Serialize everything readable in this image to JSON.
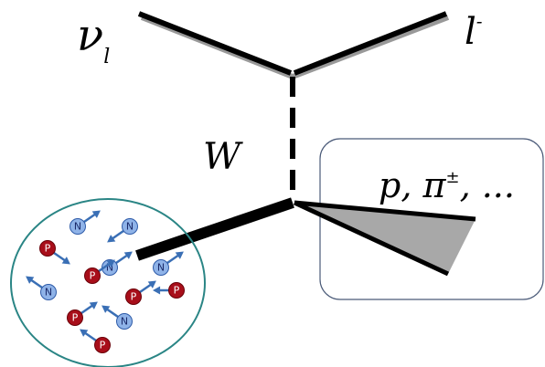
{
  "labels": {
    "neutrino": "ν",
    "neutrino_sub": "l",
    "lepton": "l",
    "lepton_sup": "-",
    "boson": "W",
    "hadrons": "p, π",
    "hadrons_sup": "±",
    "hadrons_tail": ", ..."
  },
  "nucleons": [
    "N",
    "N",
    "N",
    "N",
    "N",
    "N",
    "P",
    "P",
    "P",
    "P",
    "P",
    "P"
  ]
}
